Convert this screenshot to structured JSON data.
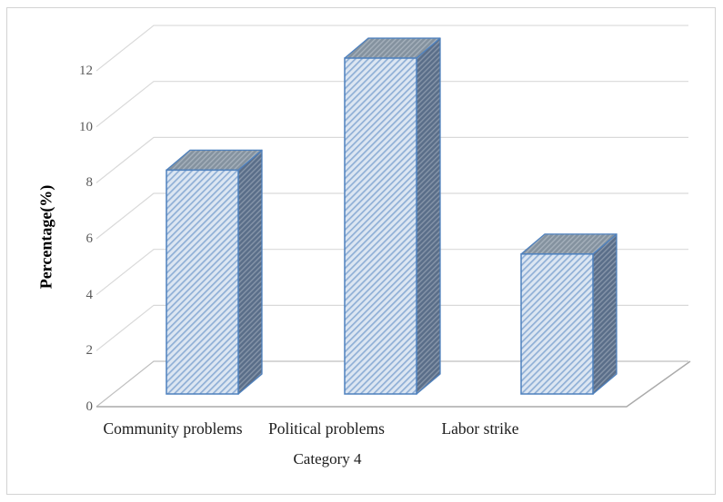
{
  "chart_data": {
    "type": "bar",
    "variant": "3d-column-hatched",
    "categories": [
      "Community problems",
      "Political problems",
      "Labor strike"
    ],
    "values": [
      8,
      12,
      5
    ],
    "xlabel": "Category 4",
    "ylabel": "Percentage(%)",
    "yticks": [
      0,
      2,
      4,
      6,
      8,
      10,
      12
    ],
    "ylim": [
      0,
      13
    ],
    "grid": true,
    "legend": false,
    "bar_texture": "light-diagonal-hatch"
  },
  "colors": {
    "background": "#ffffff",
    "outer_border": "#d3d3d3",
    "gridline": "#d9d9d9",
    "floor_edge": "#aaaaaa",
    "zero_line": "#bfbfbf",
    "tick_text": "#595959",
    "label_text": "#1c1c1c",
    "bar_edge": "#4f81bd",
    "bar_front_bg": "#dce6f2",
    "bar_front_stripe": "#8fafd6",
    "bar_side_bg": "#5a6e89",
    "bar_side_stripe": "#8695a9",
    "bar_top_bg": "#84929f",
    "bar_top_stripe": "#a5b0bb"
  }
}
